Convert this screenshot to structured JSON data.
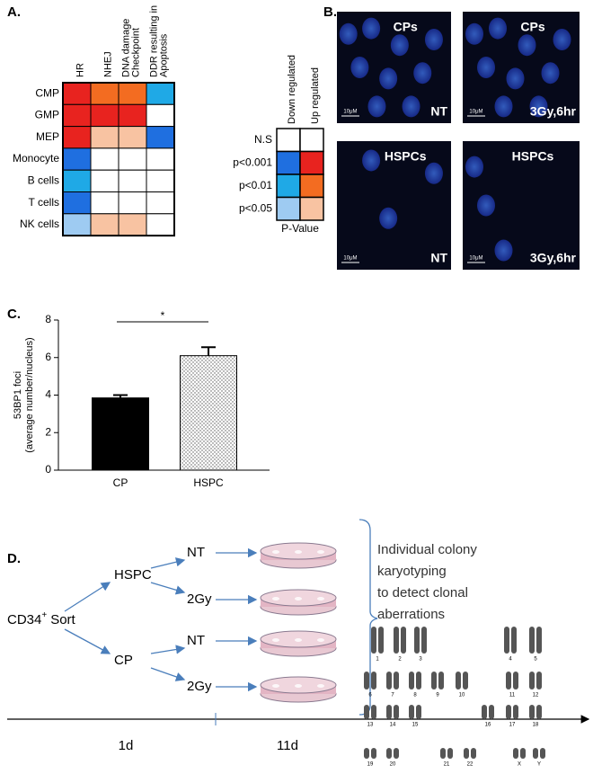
{
  "panel_a": {
    "label": "A.",
    "columns": [
      "HR",
      "NHEJ",
      [
        "DNA damage",
        "Checkpoint"
      ],
      [
        "DDR resulting in",
        "Apoptosis"
      ]
    ],
    "rows": [
      {
        "name": "CMP",
        "cells": [
          "#e8231f",
          "#f36c21",
          "#f36c21",
          "#1fa9e6"
        ]
      },
      {
        "name": "GMP",
        "cells": [
          "#e8231f",
          "#e8231f",
          "#e8231f",
          "#ffffff"
        ]
      },
      {
        "name": "MEP",
        "cells": [
          "#e8231f",
          "#f8c3a2",
          "#f8c3a2",
          "#1f6fe0"
        ]
      },
      {
        "name": "Monocyte",
        "cells": [
          "#1f6fe0",
          "#ffffff",
          "#ffffff",
          "#ffffff"
        ]
      },
      {
        "name": "B cells",
        "cells": [
          "#1fa9e6",
          "#ffffff",
          "#ffffff",
          "#ffffff"
        ]
      },
      {
        "name": "T cells",
        "cells": [
          "#1f6fe0",
          "#ffffff",
          "#ffffff",
          "#ffffff"
        ]
      },
      {
        "name": "NK cells",
        "cells": [
          "#9ecbf2",
          "#f8c3a2",
          "#f8c3a2",
          "#ffffff"
        ]
      }
    ],
    "legend": {
      "columns": [
        "Down regulated",
        "Up regulated"
      ],
      "rows": [
        {
          "name": "N.S",
          "cells": [
            "#ffffff",
            "#ffffff"
          ]
        },
        {
          "name": "p<0.001",
          "cells": [
            "#1f6fe0",
            "#e8231f"
          ]
        },
        {
          "name": "p<0.01",
          "cells": [
            "#1fa9e6",
            "#f36c21"
          ]
        },
        {
          "name": "p<0.05",
          "cells": [
            "#9ecbf2",
            "#f8c3a2"
          ]
        }
      ],
      "title": "P-Value"
    }
  },
  "panel_b": {
    "label": "B.",
    "images": [
      {
        "title": "CPs",
        "condition": "NT",
        "scale": "10μM"
      },
      {
        "title": "CPs",
        "condition": "3Gy,6hr",
        "scale": "10μM"
      },
      {
        "title": "HSPCs",
        "condition": "NT",
        "scale": "10μM"
      },
      {
        "title": "HSPCs",
        "condition": "3Gy,6hr",
        "scale": "10μM"
      }
    ]
  },
  "panel_c": {
    "label": "C."
  },
  "chart_data": {
    "type": "bar",
    "categories": [
      "CP",
      "HSPC"
    ],
    "values": [
      3.85,
      6.1
    ],
    "errors": [
      0.15,
      0.45
    ],
    "colors": [
      "#000000",
      "#ffffff"
    ],
    "dotted": [
      false,
      true
    ],
    "ylim": [
      0,
      8
    ],
    "yticks": [
      0,
      2,
      4,
      6,
      8
    ],
    "y_label": [
      "53BP1 foci",
      "(average number/nucleus)"
    ],
    "annotation": "*"
  },
  "panel_d": {
    "label": "D.",
    "source": {
      "text": "CD34",
      "sup": "+",
      "rest": "Sort"
    },
    "groups": [
      {
        "name": "HSPC",
        "arms": [
          "NT",
          "2Gy"
        ]
      },
      {
        "name": "CP",
        "arms": [
          "NT",
          "2Gy"
        ]
      }
    ],
    "timeline": [
      "1d",
      "11d"
    ],
    "description": [
      "Individual colony",
      "karyotyping",
      "to detect clonal",
      "aberrations"
    ],
    "karyotype": [
      "1",
      "2",
      "3",
      "4",
      "5",
      "6",
      "7",
      "8",
      "9",
      "10",
      "11",
      "12",
      "13",
      "14",
      "15",
      "16",
      "17",
      "18",
      "19",
      "20",
      "21",
      "22",
      "X",
      "Y"
    ]
  }
}
